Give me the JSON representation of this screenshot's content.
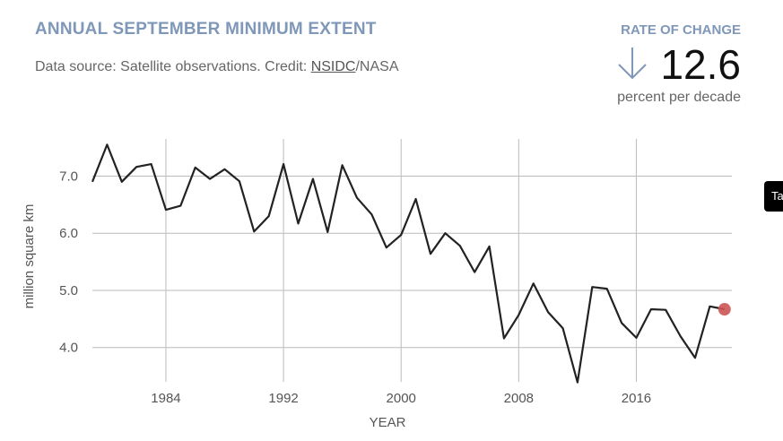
{
  "header": {
    "title": "ANNUAL SEPTEMBER MINIMUM EXTENT",
    "source_prefix": "Data source: Satellite observations. Credit: ",
    "source_link": "NSIDC",
    "source_suffix": "/NASA"
  },
  "rate": {
    "title": "RATE OF CHANGE",
    "value": "12.6",
    "units": "percent per decade",
    "arrow_icon": "arrow-down-icon"
  },
  "side_tab": {
    "label": "Ta"
  },
  "colors": {
    "title": "#7f97b8",
    "line": "#222222",
    "grid": "#bbbbbb",
    "highlight": "#cc5555"
  },
  "chart_data": {
    "type": "line",
    "title": "ANNUAL SEPTEMBER MINIMUM EXTENT",
    "xlabel": "YEAR",
    "ylabel": "million square km",
    "xlim": [
      1979,
      2022.5
    ],
    "ylim": [
      3.4,
      7.65
    ],
    "x_ticks": [
      1984,
      1992,
      2000,
      2008,
      2016
    ],
    "y_ticks": [
      4.0,
      5.0,
      6.0,
      7.0
    ],
    "y_tick_labels": [
      "4.0",
      "5.0",
      "6.0",
      "7.0"
    ],
    "grid": true,
    "series": [
      {
        "x": [
          1979,
          1980,
          1981,
          1982,
          1983,
          1984,
          1985,
          1986,
          1987,
          1988,
          1989,
          1990,
          1991,
          1992,
          1993,
          1994,
          1995,
          1996,
          1997,
          1998,
          1999,
          2000,
          2001,
          2002,
          2003,
          2004,
          2005,
          2006,
          2007,
          2008,
          2009,
          2010,
          2011,
          2012,
          2013,
          2014,
          2015,
          2016,
          2017,
          2018,
          2019,
          2020,
          2021,
          2022
        ],
        "y": [
          6.9,
          7.55,
          6.9,
          7.16,
          7.21,
          6.41,
          6.48,
          7.15,
          6.95,
          7.12,
          6.91,
          6.03,
          6.3,
          7.21,
          6.17,
          6.95,
          6.02,
          7.19,
          6.62,
          6.33,
          5.75,
          5.97,
          6.6,
          5.64,
          6.0,
          5.78,
          5.32,
          5.77,
          4.16,
          4.57,
          5.12,
          4.62,
          4.34,
          3.39,
          5.06,
          5.03,
          4.43,
          4.17,
          4.67,
          4.66,
          4.2,
          3.82,
          4.72,
          4.67
        ]
      }
    ],
    "highlight_point": {
      "x": 2022,
      "y": 4.67
    }
  }
}
